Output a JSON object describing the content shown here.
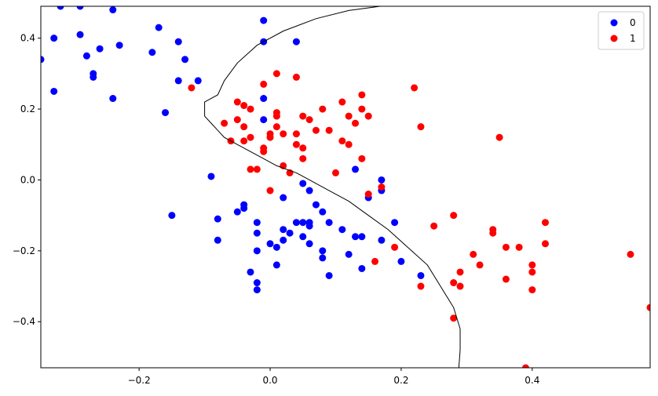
{
  "chart_data": {
    "type": "scatter",
    "title": "",
    "xlabel": "",
    "ylabel": "",
    "xlim": [
      -0.35,
      0.58
    ],
    "ylim": [
      -0.53,
      0.49
    ],
    "xticks": [
      -0.2,
      0.0,
      0.2,
      0.4
    ],
    "xtick_labels": [
      "−0.2",
      "0.0",
      "0.2",
      "0.4"
    ],
    "yticks": [
      -0.4,
      -0.2,
      0.0,
      0.2,
      0.4
    ],
    "ytick_labels": [
      "−0.4",
      "−0.2",
      "0.0",
      "0.2",
      "0.4"
    ],
    "grid": false,
    "legend": {
      "placement": "top-right",
      "entries": [
        {
          "label": "0",
          "color": "#0000ff"
        },
        {
          "label": "1",
          "color": "#ff0000"
        }
      ]
    },
    "series": [
      {
        "name": "0",
        "color": "#0000ff",
        "points": [
          [
            -0.35,
            0.34
          ],
          [
            -0.33,
            0.4
          ],
          [
            -0.33,
            0.25
          ],
          [
            -0.32,
            0.49
          ],
          [
            -0.29,
            0.49
          ],
          [
            -0.29,
            0.41
          ],
          [
            -0.28,
            0.35
          ],
          [
            -0.27,
            0.3
          ],
          [
            -0.27,
            0.29
          ],
          [
            -0.26,
            0.37
          ],
          [
            -0.24,
            0.48
          ],
          [
            -0.24,
            0.23
          ],
          [
            -0.23,
            0.38
          ],
          [
            -0.18,
            0.36
          ],
          [
            -0.17,
            0.43
          ],
          [
            -0.16,
            0.19
          ],
          [
            -0.15,
            -0.1
          ],
          [
            -0.14,
            0.39
          ],
          [
            -0.14,
            0.28
          ],
          [
            -0.13,
            0.34
          ],
          [
            -0.11,
            0.28
          ],
          [
            -0.09,
            0.01
          ],
          [
            -0.08,
            -0.11
          ],
          [
            -0.08,
            -0.17
          ],
          [
            -0.05,
            -0.09
          ],
          [
            -0.04,
            -0.07
          ],
          [
            -0.04,
            -0.08
          ],
          [
            -0.03,
            -0.26
          ],
          [
            -0.02,
            -0.12
          ],
          [
            -0.02,
            -0.15
          ],
          [
            -0.02,
            -0.2
          ],
          [
            -0.02,
            -0.29
          ],
          [
            -0.02,
            -0.31
          ],
          [
            -0.01,
            0.45
          ],
          [
            -0.01,
            0.39
          ],
          [
            -0.01,
            0.23
          ],
          [
            -0.01,
            0.17
          ],
          [
            0.0,
            -0.18
          ],
          [
            0.01,
            -0.19
          ],
          [
            0.01,
            -0.24
          ],
          [
            0.02,
            -0.05
          ],
          [
            0.02,
            -0.14
          ],
          [
            0.02,
            -0.17
          ],
          [
            0.03,
            -0.15
          ],
          [
            0.04,
            0.39
          ],
          [
            0.04,
            -0.12
          ],
          [
            0.05,
            -0.01
          ],
          [
            0.05,
            -0.12
          ],
          [
            0.05,
            -0.16
          ],
          [
            0.06,
            -0.03
          ],
          [
            0.06,
            -0.12
          ],
          [
            0.06,
            -0.13
          ],
          [
            0.06,
            -0.18
          ],
          [
            0.07,
            -0.07
          ],
          [
            0.08,
            -0.09
          ],
          [
            0.08,
            -0.2
          ],
          [
            0.08,
            -0.22
          ],
          [
            0.09,
            -0.12
          ],
          [
            0.09,
            -0.27
          ],
          [
            0.11,
            -0.14
          ],
          [
            0.12,
            -0.21
          ],
          [
            0.13,
            0.03
          ],
          [
            0.13,
            -0.16
          ],
          [
            0.14,
            -0.16
          ],
          [
            0.14,
            -0.25
          ],
          [
            0.15,
            -0.05
          ],
          [
            0.17,
            0.0
          ],
          [
            0.17,
            -0.03
          ],
          [
            0.17,
            -0.17
          ],
          [
            0.19,
            -0.12
          ],
          [
            0.2,
            -0.23
          ],
          [
            0.23,
            -0.27
          ]
        ]
      },
      {
        "name": "1",
        "color": "#ff0000",
        "points": [
          [
            -0.12,
            0.26
          ],
          [
            -0.07,
            0.16
          ],
          [
            -0.06,
            0.11
          ],
          [
            -0.05,
            0.22
          ],
          [
            -0.05,
            0.17
          ],
          [
            -0.04,
            0.21
          ],
          [
            -0.04,
            0.15
          ],
          [
            -0.04,
            0.11
          ],
          [
            -0.03,
            0.2
          ],
          [
            -0.03,
            0.12
          ],
          [
            -0.03,
            0.03
          ],
          [
            -0.02,
            0.03
          ],
          [
            -0.01,
            0.27
          ],
          [
            -0.01,
            0.09
          ],
          [
            -0.01,
            0.08
          ],
          [
            0.0,
            0.13
          ],
          [
            0.0,
            0.12
          ],
          [
            0.0,
            -0.03
          ],
          [
            0.01,
            0.3
          ],
          [
            0.01,
            0.19
          ],
          [
            0.01,
            0.18
          ],
          [
            0.01,
            0.15
          ],
          [
            0.02,
            0.13
          ],
          [
            0.02,
            0.04
          ],
          [
            0.03,
            0.02
          ],
          [
            0.04,
            0.29
          ],
          [
            0.04,
            0.13
          ],
          [
            0.04,
            0.1
          ],
          [
            0.05,
            0.18
          ],
          [
            0.05,
            0.09
          ],
          [
            0.05,
            0.06
          ],
          [
            0.06,
            0.17
          ],
          [
            0.07,
            0.14
          ],
          [
            0.08,
            0.2
          ],
          [
            0.09,
            0.14
          ],
          [
            0.1,
            0.02
          ],
          [
            0.11,
            0.22
          ],
          [
            0.11,
            0.11
          ],
          [
            0.12,
            0.18
          ],
          [
            0.12,
            0.1
          ],
          [
            0.13,
            0.16
          ],
          [
            0.14,
            0.24
          ],
          [
            0.14,
            0.2
          ],
          [
            0.14,
            0.06
          ],
          [
            0.15,
            0.18
          ],
          [
            0.15,
            -0.04
          ],
          [
            0.16,
            -0.23
          ],
          [
            0.17,
            -0.02
          ],
          [
            0.19,
            -0.19
          ],
          [
            0.22,
            0.26
          ],
          [
            0.23,
            0.15
          ],
          [
            0.23,
            -0.3
          ],
          [
            0.25,
            -0.13
          ],
          [
            0.28,
            -0.1
          ],
          [
            0.28,
            -0.29
          ],
          [
            0.28,
            -0.39
          ],
          [
            0.29,
            -0.26
          ],
          [
            0.29,
            -0.3
          ],
          [
            0.31,
            -0.21
          ],
          [
            0.32,
            -0.24
          ],
          [
            0.34,
            -0.14
          ],
          [
            0.34,
            -0.15
          ],
          [
            0.35,
            0.12
          ],
          [
            0.36,
            -0.19
          ],
          [
            0.36,
            -0.28
          ],
          [
            0.38,
            -0.19
          ],
          [
            0.39,
            -0.53
          ],
          [
            0.4,
            -0.24
          ],
          [
            0.4,
            -0.26
          ],
          [
            0.4,
            -0.31
          ],
          [
            0.42,
            -0.12
          ],
          [
            0.42,
            -0.18
          ],
          [
            0.55,
            -0.21
          ],
          [
            0.58,
            -0.36
          ]
        ]
      }
    ],
    "decision_boundary": {
      "color": "#000000",
      "points": [
        [
          0.168,
          0.49
        ],
        [
          0.12,
          0.478
        ],
        [
          0.07,
          0.455
        ],
        [
          0.02,
          0.42
        ],
        [
          -0.02,
          0.38
        ],
        [
          -0.05,
          0.33
        ],
        [
          -0.07,
          0.28
        ],
        [
          -0.08,
          0.24
        ],
        [
          -0.1,
          0.22
        ],
        [
          -0.1,
          0.19
        ],
        [
          -0.1,
          0.18
        ],
        [
          -0.09,
          0.16
        ],
        [
          -0.08,
          0.14
        ],
        [
          -0.07,
          0.12
        ],
        [
          -0.05,
          0.1
        ],
        [
          -0.03,
          0.08
        ],
        [
          -0.01,
          0.06
        ],
        [
          0.01,
          0.04
        ],
        [
          0.04,
          0.02
        ],
        [
          0.06,
          0.0
        ],
        [
          0.09,
          -0.03
        ],
        [
          0.12,
          -0.06
        ],
        [
          0.15,
          -0.1
        ],
        [
          0.18,
          -0.14
        ],
        [
          0.21,
          -0.19
        ],
        [
          0.24,
          -0.24
        ],
        [
          0.26,
          -0.3
        ],
        [
          0.28,
          -0.36
        ],
        [
          0.29,
          -0.42
        ],
        [
          0.29,
          -0.48
        ],
        [
          0.288,
          -0.53
        ]
      ]
    }
  }
}
